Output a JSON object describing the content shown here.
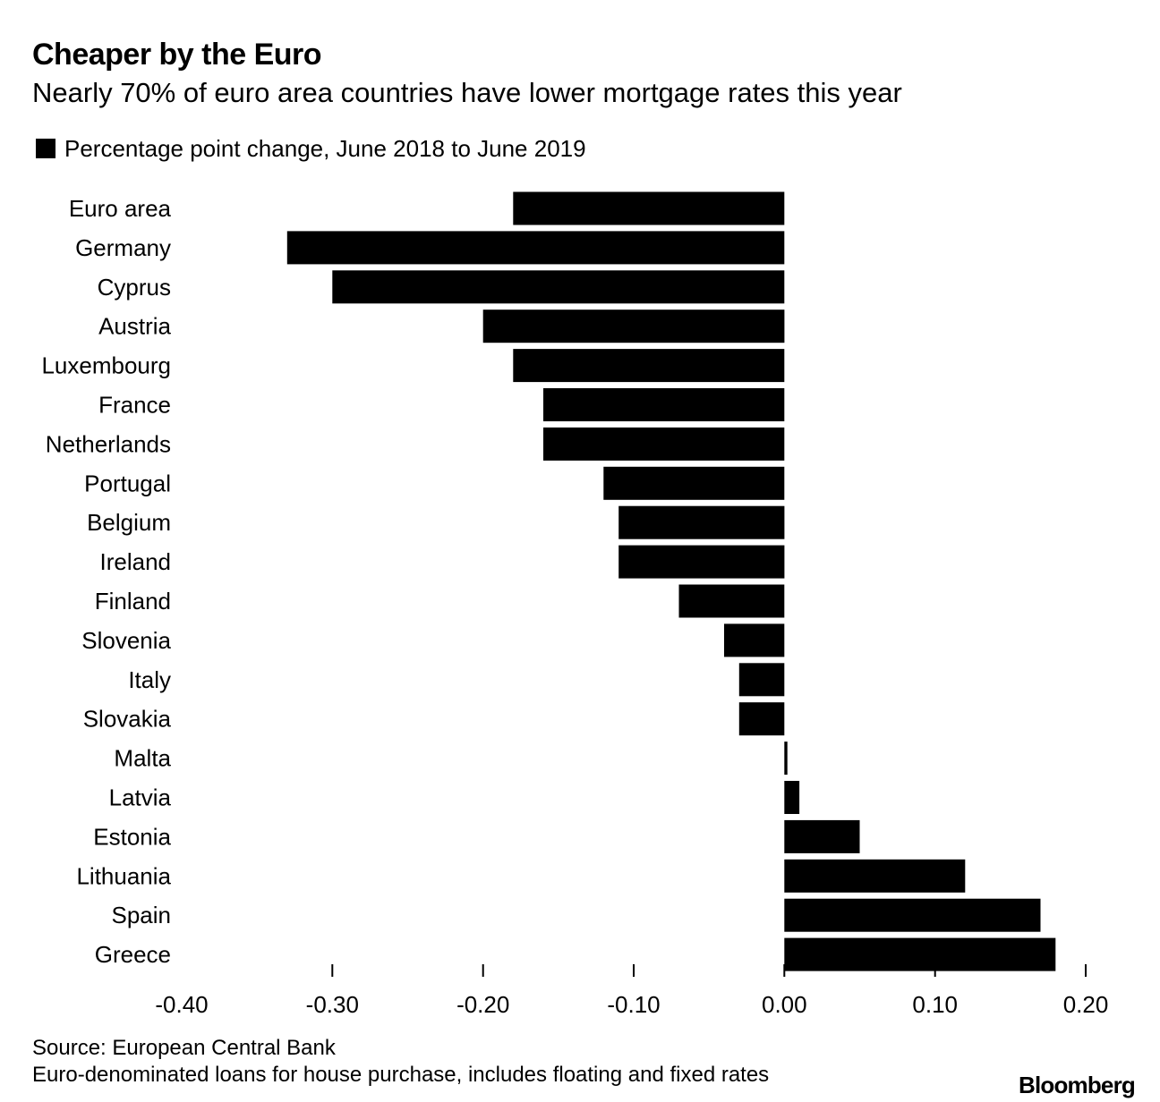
{
  "chart_data": {
    "type": "bar",
    "orientation": "horizontal",
    "title": "Cheaper by the Euro",
    "subtitle": "Nearly 70% of euro area countries have lower mortgage rates this year",
    "legend": [
      {
        "name": "Percentage point change, June 2018 to June 2019",
        "color": "#000000"
      }
    ],
    "categories": [
      "Euro area",
      "Germany",
      "Cyprus",
      "Austria",
      "Luxembourg",
      "France",
      "Netherlands",
      "Portugal",
      "Belgium",
      "Ireland",
      "Finland",
      "Slovenia",
      "Italy",
      "Slovakia",
      "Malta",
      "Latvia",
      "Estonia",
      "Lithuania",
      "Spain",
      "Greece"
    ],
    "values": [
      -0.18,
      -0.33,
      -0.3,
      -0.2,
      -0.18,
      -0.16,
      -0.16,
      -0.12,
      -0.11,
      -0.11,
      -0.07,
      -0.04,
      -0.03,
      -0.03,
      0.002,
      0.01,
      0.05,
      0.12,
      0.17,
      0.18
    ],
    "xlim": [
      -0.4,
      0.2
    ],
    "xticks": [
      -0.4,
      -0.3,
      -0.2,
      -0.1,
      0.0,
      0.1,
      0.2
    ],
    "xtick_labels": [
      "-0.40",
      "-0.30",
      "-0.20",
      "-0.10",
      "0.00",
      "0.10",
      "0.20"
    ],
    "xlabel": "",
    "ylabel": "",
    "grid": false,
    "legend_position": "top-left"
  },
  "footer": {
    "source": "Source: European Central Bank",
    "note": "Euro-denominated loans for house purchase, includes floating and fixed rates",
    "brand": "Bloomberg"
  }
}
